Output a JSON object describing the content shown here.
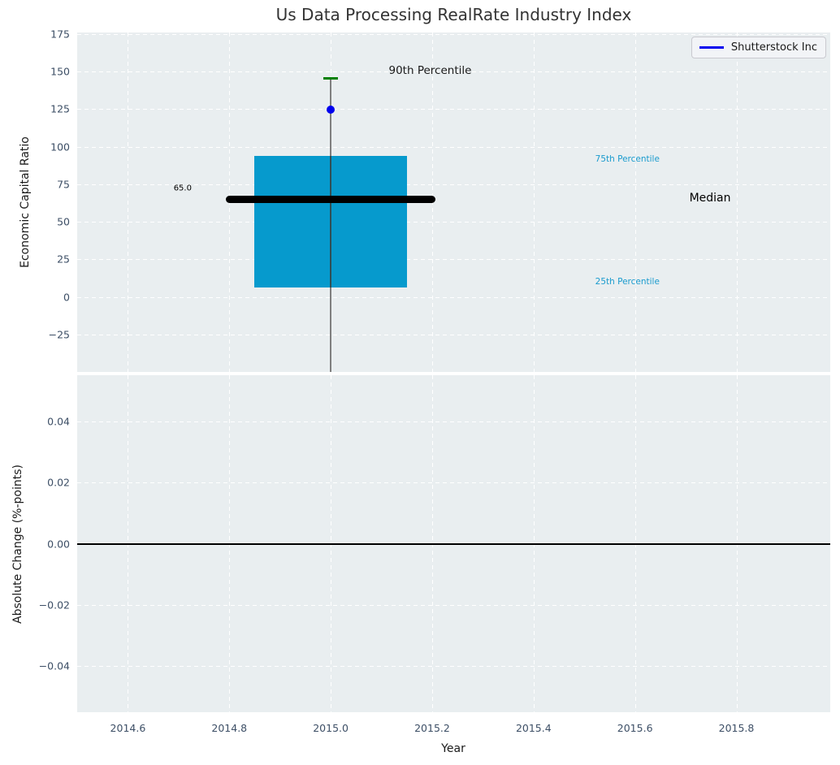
{
  "figure": {
    "background": "#ffffff",
    "axes_background": "#e9eef0",
    "grid_color": "#ffffff",
    "tick_color": "#3d4f66",
    "label_color": "#1a1a1a",
    "title_color": "#333333"
  },
  "legend": {
    "label": "Shutterstock Inc",
    "line_color": "#0000ee",
    "position": "upper right"
  },
  "chart_data": [
    {
      "type": "boxplot",
      "title": "Us Data Processing RealRate Industry Index",
      "ylabel": "Economic Capital Ratio",
      "ylim": [
        -50,
        176
      ],
      "yticks": [
        175,
        150,
        125,
        100,
        75,
        50,
        25,
        0,
        -25
      ],
      "ytick_decimals": 0,
      "xlim": [
        2014.5,
        2015.985
      ],
      "xticks": [
        2014.6,
        2014.8,
        2015.0,
        2015.2,
        2015.4,
        2015.6,
        2015.8
      ],
      "show_xtick_labels": false,
      "grid": true,
      "box": {
        "x_center": 2015.0,
        "box_halfwidth": 0.151,
        "median_halfwidth": 0.207,
        "cap_halfwidth": 0.015,
        "q1": 6,
        "median": 65,
        "q3": 94,
        "p90": 145.5,
        "whisker_low_clipped_at_axis_bottom": true,
        "box_color": "#069acd",
        "median_color": "#000000",
        "cap_color": "#008000",
        "whisker_color": "#7f7f7f"
      },
      "point": {
        "series": "Shutterstock Inc",
        "x": 2015.0,
        "y": 124.5,
        "color": "#0000ee"
      },
      "annotations": [
        {
          "text": "90th Percentile",
          "x": 2015.196,
          "y": 150.6,
          "color": "#1a1a1a",
          "size": 13.5
        },
        {
          "text": "75th Percentile",
          "x": 2015.585,
          "y": 91.7,
          "color": "#1a9bce",
          "size": 10.5
        },
        {
          "text": "Median",
          "x": 2015.748,
          "y": 65.5,
          "color": "#000000",
          "size": 14
        },
        {
          "text": "25th Percentile",
          "x": 2015.585,
          "y": 10.0,
          "color": "#1a9bce",
          "size": 10.5
        },
        {
          "text": "65.0",
          "x": 2014.708,
          "y": 72.2,
          "color": "#000000",
          "size": 10
        }
      ]
    },
    {
      "type": "line",
      "ylabel": "Absolute Change (%-points)",
      "xlabel": "Year",
      "ylim": [
        -0.055,
        0.055
      ],
      "yticks": [
        0.04,
        0.02,
        0.0,
        -0.02,
        -0.04
      ],
      "ytick_decimals": 2,
      "xlim": [
        2014.5,
        2015.985
      ],
      "xticks": [
        2014.6,
        2014.8,
        2015.0,
        2015.2,
        2015.4,
        2015.6,
        2015.8
      ],
      "xtick_decimals": 1,
      "show_xtick_labels": true,
      "grid": true,
      "zero_line": {
        "y": 0.0,
        "color": "#000000"
      },
      "series": []
    }
  ]
}
